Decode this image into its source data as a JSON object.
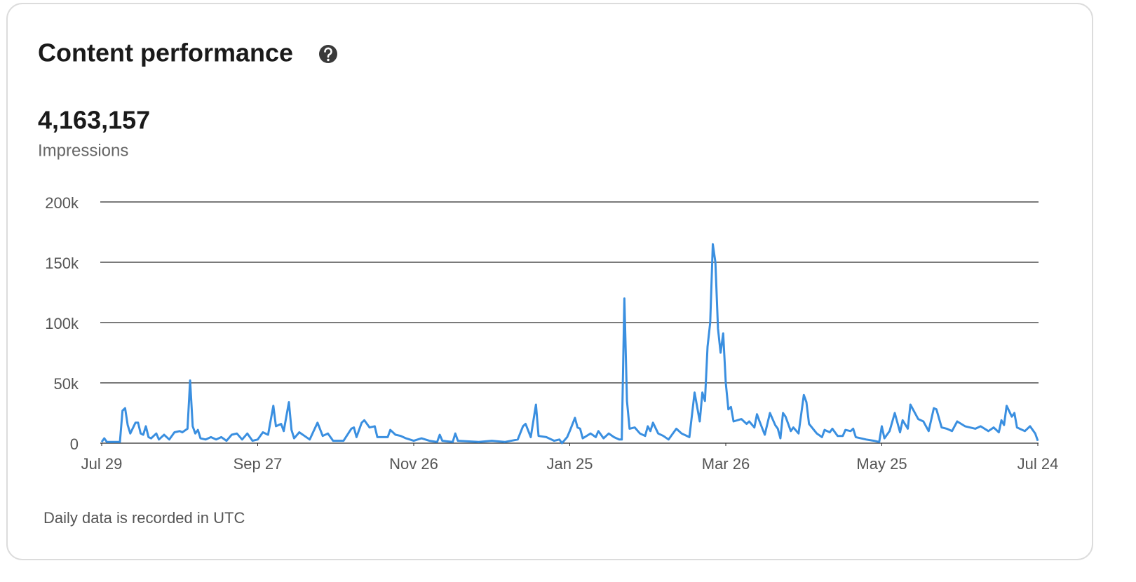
{
  "header": {
    "title": "Content performance"
  },
  "summary": {
    "total": "4,163,157",
    "metric": "Impressions"
  },
  "footer": {
    "note": "Daily data is recorded in UTC"
  },
  "chart_data": {
    "type": "line",
    "xlim": [
      0,
      360
    ],
    "xticks": [
      {
        "value": 0,
        "label": "Jul 29"
      },
      {
        "value": 60,
        "label": "Sep 27"
      },
      {
        "value": 120,
        "label": "Nov 26"
      },
      {
        "value": 180,
        "label": "Jan 25"
      },
      {
        "value": 240,
        "label": "Mar 26"
      },
      {
        "value": 300,
        "label": "May 25"
      },
      {
        "value": 360,
        "label": "Jul 24"
      }
    ],
    "ylim": [
      0,
      200000
    ],
    "yticks": [
      0,
      {
        "value": 50000,
        "label": "50k"
      },
      {
        "value": 100000,
        "label": "100k"
      },
      {
        "value": 150000,
        "label": "150k"
      },
      {
        "value": 200000,
        "label": "200k"
      }
    ],
    "grid": true,
    "series": [
      {
        "color": "#3a8fe0",
        "x": [
          0,
          1,
          2,
          7,
          8,
          9,
          10,
          11,
          13,
          14,
          15,
          16,
          17,
          18,
          19,
          21,
          22,
          24,
          26,
          28,
          30,
          31,
          33,
          34,
          35,
          36,
          37,
          38,
          40,
          42,
          44,
          46,
          48,
          50,
          52,
          54,
          56,
          58,
          60,
          62,
          64,
          66,
          67,
          69,
          70,
          72,
          73,
          74,
          76,
          78,
          80,
          83,
          85,
          87,
          89,
          93,
          96,
          97,
          98,
          100,
          101,
          103,
          105,
          106,
          110,
          111,
          113,
          115,
          117,
          120,
          123,
          126,
          129,
          130,
          131,
          135,
          136,
          137,
          145,
          150,
          155,
          160,
          162,
          163,
          165,
          167,
          168,
          171,
          174,
          176,
          177,
          179,
          180,
          182,
          183,
          184,
          185,
          188,
          190,
          191,
          193,
          195,
          197,
          199,
          200,
          201,
          202,
          203,
          205,
          207,
          209,
          210,
          211,
          212,
          214,
          216,
          218,
          221,
          223,
          226,
          228,
          230,
          231,
          232,
          233,
          234,
          235,
          236,
          237,
          238,
          239,
          240,
          241,
          242,
          243,
          246,
          248,
          249,
          251,
          252,
          253,
          255,
          257,
          259,
          260,
          261,
          262,
          263,
          265,
          266,
          268,
          270,
          271,
          272,
          275,
          277,
          278,
          280,
          281,
          283,
          285,
          286,
          288,
          289,
          290,
          294,
          297,
          299,
          300,
          301,
          303,
          305,
          307,
          308,
          310,
          311,
          314,
          316,
          318,
          320,
          321,
          323,
          325,
          327,
          329,
          332,
          336,
          338,
          341,
          343,
          345,
          346,
          347,
          348,
          350,
          351,
          352,
          355,
          357,
          359,
          360
        ],
        "values": [
          1000,
          4000,
          1000,
          1000,
          27000,
          29000,
          15000,
          8000,
          17000,
          17000,
          8000,
          7000,
          14000,
          5000,
          4000,
          8000,
          3000,
          7000,
          3000,
          9000,
          10000,
          9000,
          12000,
          52000,
          14000,
          8000,
          11000,
          4000,
          3000,
          5000,
          3000,
          5000,
          2000,
          7000,
          8000,
          3000,
          8000,
          2000,
          3000,
          9000,
          7000,
          31000,
          14000,
          16000,
          10000,
          34000,
          11000,
          4000,
          9000,
          6000,
          3000,
          17000,
          6000,
          8000,
          2000,
          2000,
          12000,
          13000,
          5000,
          17000,
          19000,
          13000,
          14000,
          5000,
          5000,
          11000,
          7000,
          6000,
          4000,
          2000,
          4000,
          2000,
          1000,
          7000,
          2000,
          1000,
          8000,
          2000,
          1000,
          2000,
          1000,
          3000,
          14000,
          16000,
          5000,
          32000,
          6000,
          5000,
          2000,
          3000,
          0,
          5000,
          10000,
          21000,
          13000,
          12000,
          4000,
          8000,
          5000,
          10000,
          4000,
          8000,
          5000,
          3000,
          3000,
          120000,
          35000,
          12000,
          13000,
          8000,
          6000,
          14000,
          10000,
          17000,
          8000,
          6000,
          3000,
          12000,
          8000,
          5000,
          42000,
          18000,
          42000,
          35000,
          80000,
          100000,
          165000,
          150000,
          95000,
          75000,
          91000,
          50000,
          28000,
          30000,
          18000,
          20000,
          16000,
          18000,
          13000,
          24000,
          18000,
          7000,
          25000,
          15000,
          12000,
          4000,
          25000,
          22000,
          10000,
          13000,
          8000,
          40000,
          34000,
          16000,
          8000,
          5000,
          11000,
          9000,
          12000,
          6000,
          6000,
          11000,
          10000,
          12000,
          5000,
          3000,
          2000,
          1000,
          14000,
          4000,
          10000,
          25000,
          9000,
          19000,
          12000,
          32000,
          20000,
          18000,
          10000,
          29000,
          28000,
          13000,
          12000,
          10000,
          18000,
          14000,
          12000,
          14000,
          10000,
          13000,
          9000,
          19000,
          15000,
          31000,
          22000,
          25000,
          13000,
          10000,
          14000,
          8000,
          2000
        ]
      }
    ]
  }
}
